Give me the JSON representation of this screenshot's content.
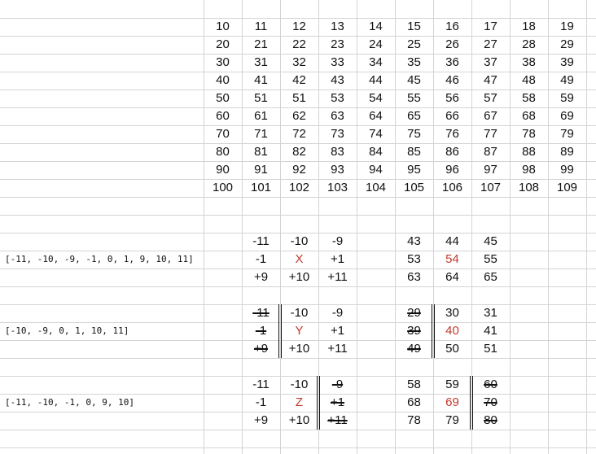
{
  "grid": {
    "rows": [
      [
        "10",
        "11",
        "12",
        "13",
        "14",
        "15",
        "16",
        "17",
        "18",
        "19"
      ],
      [
        "20",
        "21",
        "22",
        "23",
        "24",
        "25",
        "26",
        "27",
        "28",
        "29"
      ],
      [
        "30",
        "31",
        "32",
        "33",
        "34",
        "35",
        "36",
        "37",
        "38",
        "39"
      ],
      [
        "40",
        "41",
        "42",
        "43",
        "44",
        "45",
        "46",
        "47",
        "48",
        "49"
      ],
      [
        "50",
        "51",
        "51",
        "53",
        "54",
        "55",
        "56",
        "57",
        "58",
        "59"
      ],
      [
        "60",
        "61",
        "62",
        "63",
        "64",
        "65",
        "66",
        "67",
        "68",
        "69"
      ],
      [
        "70",
        "71",
        "72",
        "73",
        "74",
        "75",
        "76",
        "77",
        "78",
        "79"
      ],
      [
        "80",
        "81",
        "82",
        "83",
        "84",
        "85",
        "86",
        "87",
        "88",
        "89"
      ],
      [
        "90",
        "91",
        "92",
        "93",
        "94",
        "95",
        "96",
        "97",
        "98",
        "99"
      ],
      [
        "100",
        "101",
        "102",
        "103",
        "104",
        "105",
        "106",
        "107",
        "108",
        "109"
      ]
    ]
  },
  "examples": [
    {
      "label": "[-11, -10, -9, -1, 0, 1, 9, 10, 11]",
      "offsets": [
        [
          "-11",
          "-10",
          "-9"
        ],
        [
          "-1",
          "X",
          "+1"
        ],
        [
          "+9",
          "+10",
          "+11"
        ]
      ],
      "values": [
        [
          "43",
          "44",
          "45"
        ],
        [
          "53",
          "54",
          "55"
        ],
        [
          "63",
          "64",
          "65"
        ]
      ],
      "struck_offsets": [],
      "struck_values": []
    },
    {
      "label": "[-10, -9, 0, 1, 10, 11]",
      "offsets": [
        [
          "-11",
          "-10",
          "-9"
        ],
        [
          "-1",
          "Y",
          "+1"
        ],
        [
          "+9",
          "+10",
          "+11"
        ]
      ],
      "values": [
        [
          "29",
          "30",
          "31"
        ],
        [
          "39",
          "40",
          "41"
        ],
        [
          "49",
          "50",
          "51"
        ]
      ],
      "struck_offsets": [
        "0-0",
        "1-0",
        "2-0"
      ],
      "struck_values": [
        "0-0",
        "1-0",
        "2-0"
      ]
    },
    {
      "label": "[-11, -10, -1, 0, 9, 10]",
      "offsets": [
        [
          "-11",
          "-10",
          "-9"
        ],
        [
          "-1",
          "Z",
          "+1"
        ],
        [
          "+9",
          "+10",
          "+11"
        ]
      ],
      "values": [
        [
          "58",
          "59",
          "60"
        ],
        [
          "68",
          "69",
          "70"
        ],
        [
          "78",
          "79",
          "80"
        ]
      ],
      "struck_offsets": [
        "0-2",
        "1-2",
        "2-2"
      ],
      "struck_values": [
        "0-2",
        "1-2",
        "2-2"
      ]
    }
  ],
  "colors": {
    "grid_line": "#d4d4d4",
    "text": "#111111",
    "center": "#c0392b"
  }
}
